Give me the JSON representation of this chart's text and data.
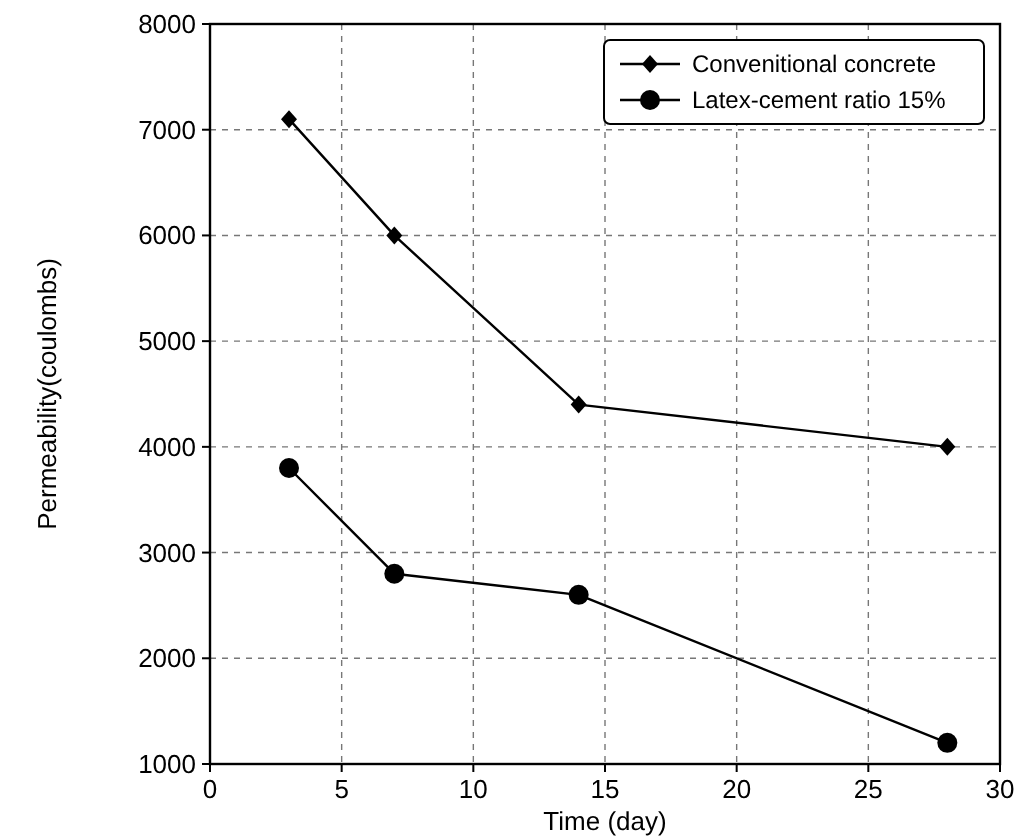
{
  "chart_data": {
    "type": "line",
    "xlabel": "Time (day)",
    "ylabel": "Permeability(coulombs)",
    "x": [
      3,
      7,
      14,
      28
    ],
    "series": [
      {
        "name": "Convenitional concrete",
        "color": "#000000",
        "marker": "diamond",
        "values": [
          7100,
          6000,
          4400,
          4000
        ]
      },
      {
        "name": "Latex-cement ratio 15%",
        "color": "#000000",
        "marker": "circle",
        "values": [
          3800,
          2800,
          2600,
          1200
        ]
      }
    ],
    "xlim": [
      0,
      30
    ],
    "xticks": [
      0,
      5,
      10,
      15,
      20,
      25,
      30
    ],
    "ylim": [
      1000,
      8000
    ],
    "yticks": [
      1000,
      2000,
      3000,
      4000,
      5000,
      6000,
      7000,
      8000
    ],
    "grid": true,
    "legend": "top right",
    "line_style": "solid"
  }
}
